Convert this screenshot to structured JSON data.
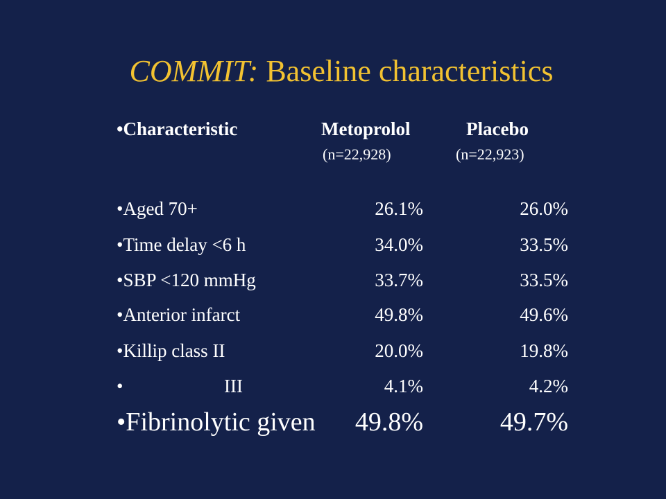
{
  "slide": {
    "title_italic": "COMMIT:",
    "title_rest": " Baseline characteristics",
    "header": {
      "characteristic": "•Characteristic",
      "col1": "Metoprolol",
      "col2": "Placebo",
      "col1_n": "(n=22,928)",
      "col2_n": "(n=22,923)"
    },
    "rows": [
      {
        "label": "•Aged 70+",
        "metoprolol": "26.1%",
        "placebo": "26.0%"
      },
      {
        "label": "•Time delay <6 h",
        "metoprolol": "34.0%",
        "placebo": "33.5%"
      },
      {
        "label": "•SBP <120 mmHg",
        "metoprolol": "33.7%",
        "placebo": "33.5%"
      },
      {
        "label": "•Anterior infarct",
        "metoprolol": "49.8%",
        "placebo": "49.6%"
      },
      {
        "label": "•Killip class II",
        "metoprolol": "20.0%",
        "placebo": "19.8%"
      },
      {
        "label": "•",
        "sublabel": "III",
        "metoprolol": "4.1%",
        "placebo": "4.2%"
      }
    ],
    "emphasis_row": {
      "label": "•Fibrinolytic given",
      "metoprolol": "49.8%",
      "placebo": "49.7%"
    }
  },
  "colors": {
    "background": "#14214a",
    "title": "#f2c231",
    "text": "#ffffff"
  }
}
